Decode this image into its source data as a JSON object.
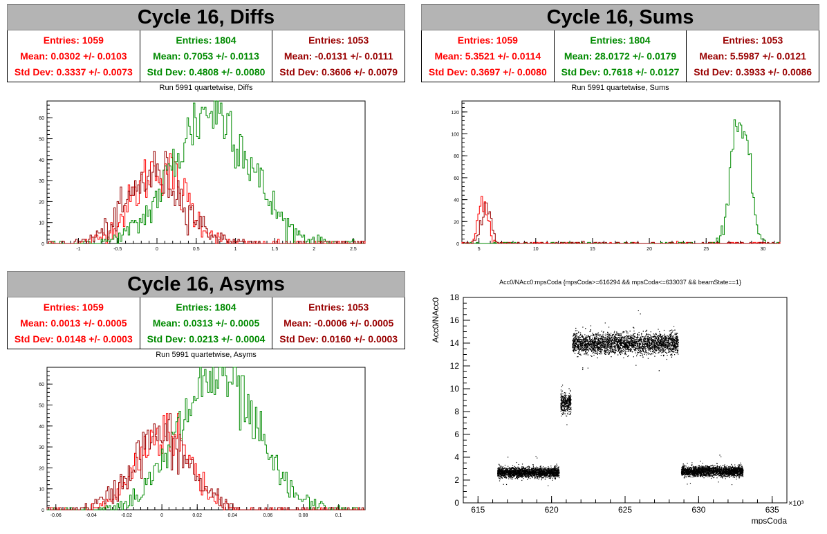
{
  "panels": {
    "diffs": {
      "title": "Cycle 16, Diffs",
      "subtitle": "Run 5991 quartetwise, Diffs",
      "stats": [
        {
          "entries": "Entries: 1059",
          "mean": "Mean: 0.0302 +/- 0.0103",
          "std": "Std Dev: 0.3337 +/- 0.0073",
          "color": "#ff0000"
        },
        {
          "entries": "Entries: 1804",
          "mean": "Mean: 0.7053 +/- 0.0113",
          "std": "Std Dev: 0.4808 +/- 0.0080",
          "color": "#008a00"
        },
        {
          "entries": "Entries: 1053",
          "mean": "Mean: -0.0131 +/- 0.0111",
          "std": "Std Dev: 0.3606 +/- 0.0079",
          "color": "#990000"
        }
      ]
    },
    "sums": {
      "title": "Cycle 16, Sums",
      "subtitle": "Run 5991 quartetwise, Sums",
      "stats": [
        {
          "entries": "Entries: 1059",
          "mean": "Mean: 5.3521 +/- 0.0114",
          "std": "Std Dev: 0.3697 +/- 0.0080",
          "color": "#ff0000"
        },
        {
          "entries": "Entries: 1804",
          "mean": "Mean: 28.0172 +/- 0.0179",
          "std": "Std Dev: 0.7618 +/- 0.0127",
          "color": "#008a00"
        },
        {
          "entries": "Entries: 1053",
          "mean": "Mean: 5.5987 +/- 0.0121",
          "std": "Std Dev: 0.3933 +/- 0.0086",
          "color": "#990000"
        }
      ]
    },
    "asyms": {
      "title": "Cycle 16, Asyms",
      "subtitle": "Run 5991 quartetwise, Asyms",
      "stats": [
        {
          "entries": "Entries: 1059",
          "mean": "Mean: 0.0013 +/- 0.0005",
          "std": "Std Dev: 0.0148 +/- 0.0003",
          "color": "#ff0000"
        },
        {
          "entries": "Entries: 1804",
          "mean": "Mean: 0.0313 +/- 0.0005",
          "std": "Std Dev: 0.0213 +/- 0.0004",
          "color": "#008a00"
        },
        {
          "entries": "Entries: 1053",
          "mean": "Mean: -0.0006 +/- 0.0005",
          "std": "Std Dev: 0.0160 +/- 0.0003",
          "color": "#990000"
        }
      ]
    },
    "scatter": {
      "title": "Acc0/NAcc0:mpsCoda {mpsCoda>=616294 && mpsCoda<=633037 && beamState==1}",
      "xlabel": "mpsCoda",
      "ylabel": "Acc0/NAcc0",
      "exponent": "×10³"
    }
  },
  "chart_data": [
    {
      "type": "bar",
      "title": "Run 5991 quartetwise, Diffs",
      "xlim": [
        -1.4,
        2.65
      ],
      "ylim": [
        0,
        68
      ],
      "xticks": [
        -1,
        -0.5,
        0,
        0.5,
        1,
        1.5,
        2,
        2.5
      ],
      "yticks": [
        0,
        10,
        20,
        30,
        40,
        50,
        60
      ],
      "series": [
        {
          "color": "#ff0000",
          "mean": 0.0302,
          "std": 0.3337,
          "peak": 36
        },
        {
          "color": "#008a00",
          "mean": 0.7053,
          "std": 0.4808,
          "peak": 64
        },
        {
          "color": "#990000",
          "mean": -0.0131,
          "std": 0.3606,
          "peak": 33
        }
      ]
    },
    {
      "type": "bar",
      "title": "Run 5991 quartetwise, Sums",
      "xlim": [
        3.5,
        31.5
      ],
      "ylim": [
        0,
        130
      ],
      "xticks": [
        5,
        10,
        15,
        20,
        25,
        30
      ],
      "yticks": [
        0,
        20,
        40,
        60,
        80,
        100,
        120
      ],
      "series": [
        {
          "color": "#ff0000",
          "mean": 5.3521,
          "std": 0.3697,
          "peak": 42
        },
        {
          "color": "#008a00",
          "mean": 28.0172,
          "std": 0.7618,
          "peak": 122
        },
        {
          "color": "#990000",
          "mean": 5.5987,
          "std": 0.3933,
          "peak": 37
        }
      ]
    },
    {
      "type": "bar",
      "title": "Run 5991 quartetwise, Asyms",
      "xlim": [
        -0.065,
        0.115
      ],
      "ylim": [
        0,
        68
      ],
      "xticks": [
        -0.06,
        -0.04,
        -0.02,
        0,
        0.02,
        0.04,
        0.06,
        0.08,
        0.1
      ],
      "yticks": [
        0,
        10,
        20,
        30,
        40,
        50,
        60
      ],
      "series": [
        {
          "color": "#ff0000",
          "mean": 0.0013,
          "std": 0.0148,
          "peak": 38
        },
        {
          "color": "#008a00",
          "mean": 0.0313,
          "std": 0.0213,
          "peak": 64
        },
        {
          "color": "#990000",
          "mean": -0.0006,
          "std": 0.016,
          "peak": 35
        }
      ]
    },
    {
      "type": "scatter",
      "title": "Acc0/NAcc0:mpsCoda {mpsCoda>=616294 && mpsCoda<=633037 && beamState==1}",
      "xlabel": "mpsCoda",
      "ylabel": "Acc0/NAcc0",
      "xlim": [
        614,
        636
      ],
      "ylim": [
        0,
        18
      ],
      "xticks": [
        615,
        620,
        625,
        630,
        635
      ],
      "yticks": [
        0,
        2,
        4,
        6,
        8,
        10,
        12,
        14,
        16,
        18
      ],
      "clusters": [
        {
          "x": [
            616.3,
            620.5
          ],
          "y": 2.7,
          "spread": 0.22
        },
        {
          "x": [
            620.6,
            621.3
          ],
          "y": 8.8,
          "spread": 0.45
        },
        {
          "x": [
            621.4,
            628.6
          ],
          "y": 14.0,
          "spread": 0.45
        },
        {
          "x": [
            628.8,
            633.0
          ],
          "y": 2.8,
          "spread": 0.22
        }
      ],
      "color": "#000000"
    }
  ]
}
